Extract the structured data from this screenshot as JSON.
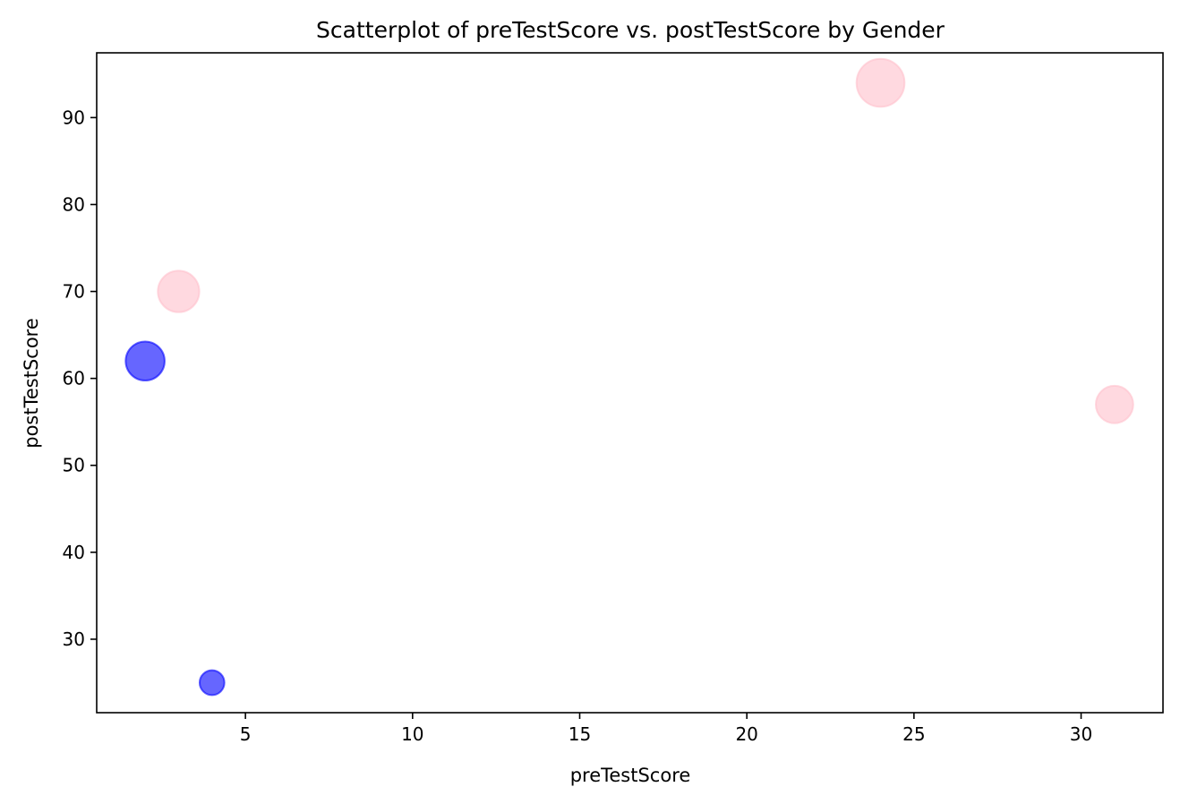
{
  "chart_data": {
    "type": "scatter",
    "title": "Scatterplot of preTestScore vs. postTestScore by Gender",
    "xlabel": "preTestScore",
    "ylabel": "postTestScore",
    "xlim": [
      0.55,
      32.45
    ],
    "ylim": [
      21.55,
      97.45
    ],
    "x_ticks": [
      5,
      10,
      15,
      20,
      25,
      30
    ],
    "y_ticks": [
      30,
      40,
      50,
      60,
      70,
      80,
      90
    ],
    "grid": false,
    "series": [
      {
        "color": "#0000ff",
        "points": [
          {
            "x": 2,
            "y": 62,
            "size": 62
          },
          {
            "x": 4,
            "y": 25,
            "size": 25
          }
        ]
      },
      {
        "color": "#ffc0cb",
        "points": [
          {
            "x": 3,
            "y": 70,
            "size": 70
          },
          {
            "x": 24,
            "y": 94,
            "size": 94
          },
          {
            "x": 31,
            "y": 57,
            "size": 57
          }
        ]
      }
    ]
  }
}
